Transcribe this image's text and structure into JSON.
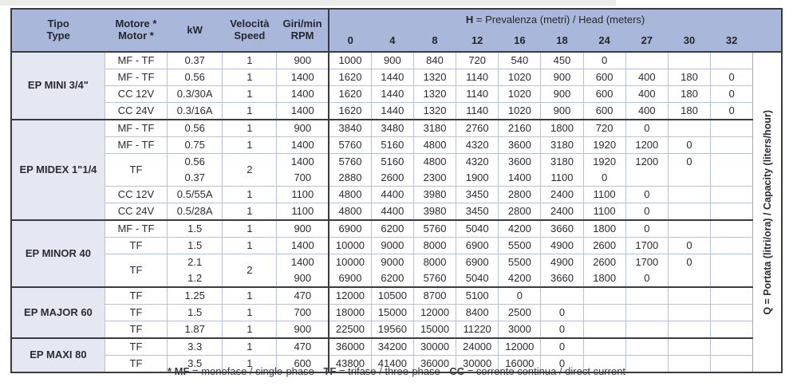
{
  "table": {
    "columns": [
      {
        "id": "tipo",
        "label_lines": [
          "Tipo",
          "Type"
        ]
      },
      {
        "id": "motore",
        "label_lines": [
          "Motore *",
          "Motor *"
        ]
      },
      {
        "id": "kw",
        "label_lines": [
          "kW"
        ]
      },
      {
        "id": "velocita",
        "label_lines": [
          "Velocità",
          "Speed"
        ]
      },
      {
        "id": "giri",
        "label_lines": [
          "Giri/min",
          "RPM"
        ]
      }
    ],
    "head_header": {
      "segments": [
        {
          "text": "H",
          "bold": true
        },
        {
          "text": " = Prevalenza (metri) / Head (meters)",
          "bold": false
        }
      ]
    },
    "head_values": [
      "0",
      "4",
      "8",
      "12",
      "16",
      "18",
      "24",
      "27",
      "30",
      "32"
    ],
    "vertical_label": "Q = Portata (litri/ora) / Capacity (liters/hour)",
    "groups": [
      {
        "name": "EP MINI 3/4\"",
        "rows": [
          {
            "motor": "MF - TF",
            "kw": "0.37",
            "speed": "1",
            "rpm": "900",
            "values": [
              "1000",
              "900",
              "840",
              "720",
              "540",
              "450",
              "0",
              "",
              "",
              ""
            ]
          },
          {
            "motor": "MF - TF",
            "kw": "0.56",
            "speed": "1",
            "rpm": "1400",
            "values": [
              "1620",
              "1440",
              "1320",
              "1140",
              "1020",
              "900",
              "600",
              "400",
              "180",
              "0"
            ]
          },
          {
            "motor": "CC 12V",
            "kw": "0.3/30A",
            "speed": "1",
            "rpm": "1400",
            "values": [
              "1620",
              "1440",
              "1320",
              "1140",
              "1020",
              "900",
              "600",
              "400",
              "180",
              "0"
            ]
          },
          {
            "motor": "CC 24V",
            "kw": "0.3/16A",
            "speed": "1",
            "rpm": "1400",
            "values": [
              "1620",
              "1440",
              "1320",
              "1140",
              "1020",
              "900",
              "600",
              "400",
              "180",
              "0"
            ]
          }
        ]
      },
      {
        "name": "EP MIDEX 1\"1/4",
        "rows": [
          {
            "motor": "MF - TF",
            "kw": "0.56",
            "speed": "1",
            "rpm": "900",
            "values": [
              "3840",
              "3480",
              "3180",
              "2760",
              "2160",
              "1800",
              "720",
              "0",
              "",
              ""
            ]
          },
          {
            "motor": "MF - TF",
            "kw": "0.75",
            "speed": "1",
            "rpm": "1400",
            "values": [
              "5760",
              "5160",
              "4800",
              "4320",
              "3600",
              "3180",
              "1920",
              "1200",
              "0",
              ""
            ]
          },
          {
            "motor": "TF",
            "speed": "2",
            "sub": [
              {
                "kw": "0.56",
                "rpm": "1400",
                "values": [
                  "5760",
                  "5160",
                  "4800",
                  "4320",
                  "3600",
                  "3180",
                  "1920",
                  "1200",
                  "0",
                  ""
                ]
              },
              {
                "kw": "0.37",
                "rpm": "700",
                "values": [
                  "2880",
                  "2600",
                  "2300",
                  "1900",
                  "1400",
                  "1100",
                  "0",
                  "",
                  "",
                  ""
                ]
              }
            ]
          },
          {
            "motor": "CC 12V",
            "kw": "0.5/55A",
            "speed": "1",
            "rpm": "1100",
            "values": [
              "4800",
              "4400",
              "3980",
              "3450",
              "2800",
              "2400",
              "1100",
              "0",
              "",
              ""
            ]
          },
          {
            "motor": "CC 24V",
            "kw": "0.5/28A",
            "speed": "1",
            "rpm": "1100",
            "values": [
              "4800",
              "4400",
              "3980",
              "3450",
              "2800",
              "2400",
              "1100",
              "0",
              "",
              ""
            ]
          }
        ]
      },
      {
        "name": "EP MINOR 40",
        "rows": [
          {
            "motor": "MF - TF",
            "kw": "1.5",
            "speed": "1",
            "rpm": "900",
            "values": [
              "6900",
              "6200",
              "5760",
              "5040",
              "4200",
              "3660",
              "1800",
              "0",
              "",
              ""
            ]
          },
          {
            "motor": "TF",
            "kw": "1.5",
            "speed": "1",
            "rpm": "1400",
            "values": [
              "10000",
              "9000",
              "8000",
              "6900",
              "5500",
              "4900",
              "2600",
              "1700",
              "0",
              ""
            ]
          },
          {
            "motor": "TF",
            "speed": "2",
            "sub": [
              {
                "kw": "2.1",
                "rpm": "1400",
                "values": [
                  "10000",
                  "9000",
                  "8000",
                  "6900",
                  "5500",
                  "4900",
                  "2600",
                  "1700",
                  "0",
                  ""
                ]
              },
              {
                "kw": "1.2",
                "rpm": "900",
                "values": [
                  "6900",
                  "6200",
                  "5760",
                  "5040",
                  "4200",
                  "3660",
                  "1800",
                  "0",
                  "",
                  ""
                ]
              }
            ]
          }
        ]
      },
      {
        "name": "EP MAJOR 60",
        "rows": [
          {
            "motor": "TF",
            "kw": "1.25",
            "speed": "1",
            "rpm": "470",
            "values": [
              "12000",
              "10500",
              "8700",
              "5100",
              "0",
              "",
              "",
              "",
              "",
              ""
            ]
          },
          {
            "motor": "TF",
            "kw": "1.5",
            "speed": "1",
            "rpm": "700",
            "values": [
              "18000",
              "15000",
              "12000",
              "8400",
              "2500",
              "0",
              "",
              "",
              "",
              ""
            ]
          },
          {
            "motor": "TF",
            "kw": "1.87",
            "speed": "1",
            "rpm": "900",
            "values": [
              "22500",
              "19560",
              "15000",
              "11220",
              "3000",
              "0",
              "",
              "",
              "",
              ""
            ]
          }
        ]
      },
      {
        "name": "EP MAXI 80",
        "rows": [
          {
            "motor": "TF",
            "kw": "3.3",
            "speed": "1",
            "rpm": "470",
            "values": [
              "36000",
              "34200",
              "30000",
              "24000",
              "12000",
              "0",
              "",
              "",
              "",
              ""
            ]
          },
          {
            "motor": "TF",
            "kw": "3.5",
            "speed": "1",
            "rpm": "600",
            "values": [
              "43800",
              "41400",
              "36000",
              "30000",
              "16000",
              "0",
              "",
              "",
              "",
              ""
            ]
          }
        ]
      }
    ],
    "footnote": {
      "segments": [
        {
          "text": "* MF",
          "bold": true
        },
        {
          "text": " = monofase / single-phase - ",
          "bold": false
        },
        {
          "text": "TF",
          "bold": true
        },
        {
          "text": " = trifase / three-phase - ",
          "bold": false
        },
        {
          "text": "CC",
          "bold": true
        },
        {
          "text": " = corrente continua / direct current",
          "bold": false
        }
      ]
    }
  }
}
